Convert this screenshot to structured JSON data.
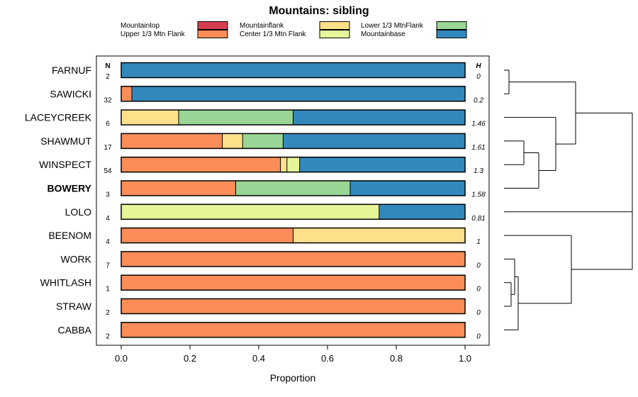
{
  "chart_data": {
    "type": "bar",
    "stacked": true,
    "orientation": "horizontal",
    "title": "Mountains: sibling",
    "xlabel": "Proportion",
    "xlim": [
      0,
      1
    ],
    "x_ticks": [
      "0.0",
      "0.2",
      "0.4",
      "0.6",
      "0.8",
      "1.0"
    ],
    "legend": [
      {
        "name": "Mountaintop",
        "color": "#d53e4f"
      },
      {
        "name": "Upper 1/3 Mtn Flank",
        "color": "#fc8d59"
      },
      {
        "name": "Mountainflank",
        "color": "#fee08b"
      },
      {
        "name": "Center 1/3 Mtn Flank",
        "color": "#e6f598"
      },
      {
        "name": "Lower 1/3 MtnFlank",
        "color": "#99d594"
      },
      {
        "name": "Mountainbase",
        "color": "#3288bd"
      }
    ],
    "n_header": "N",
    "h_header": "H",
    "rows": [
      {
        "label": "FARNUF",
        "bold": false,
        "n": "2",
        "h": "0",
        "values": [
          0,
          0,
          0,
          0,
          0,
          1.0
        ]
      },
      {
        "label": "SAWICKI",
        "bold": false,
        "n": "32",
        "h": "0.2",
        "values": [
          0,
          0.031,
          0,
          0,
          0,
          0.969
        ]
      },
      {
        "label": "LACEYCREEK",
        "bold": false,
        "n": "6",
        "h": "1.46",
        "values": [
          0,
          0,
          0.167,
          0,
          0.333,
          0.5
        ]
      },
      {
        "label": "SHAWMUT",
        "bold": false,
        "n": "17",
        "h": "1.61",
        "values": [
          0,
          0.294,
          0.059,
          0,
          0.118,
          0.529
        ]
      },
      {
        "label": "WINSPECT",
        "bold": false,
        "n": "54",
        "h": "1.3",
        "values": [
          0,
          0.463,
          0.019,
          0.037,
          0,
          0.481
        ]
      },
      {
        "label": "BOWERY",
        "bold": true,
        "n": "3",
        "h": "1.58",
        "values": [
          0,
          0.333,
          0,
          0,
          0.333,
          0.334
        ]
      },
      {
        "label": "LOLO",
        "bold": false,
        "n": "4",
        "h": "0.81",
        "values": [
          0,
          0,
          0,
          0.75,
          0,
          0.25
        ]
      },
      {
        "label": "BEENOM",
        "bold": false,
        "n": "4",
        "h": "1",
        "values": [
          0,
          0.5,
          0.5,
          0,
          0,
          0
        ]
      },
      {
        "label": "WORK",
        "bold": false,
        "n": "7",
        "h": "0",
        "values": [
          0,
          1.0,
          0,
          0,
          0,
          0
        ]
      },
      {
        "label": "WHITLASH",
        "bold": false,
        "n": "1",
        "h": "0",
        "values": [
          0,
          1.0,
          0,
          0,
          0,
          0
        ]
      },
      {
        "label": "STRAW",
        "bold": false,
        "n": "2",
        "h": "0",
        "values": [
          0,
          1.0,
          0,
          0,
          0,
          0
        ]
      },
      {
        "label": "CABBA",
        "bold": false,
        "n": "2",
        "h": "0",
        "values": [
          0,
          1.0,
          0,
          0,
          0,
          0
        ]
      }
    ]
  }
}
